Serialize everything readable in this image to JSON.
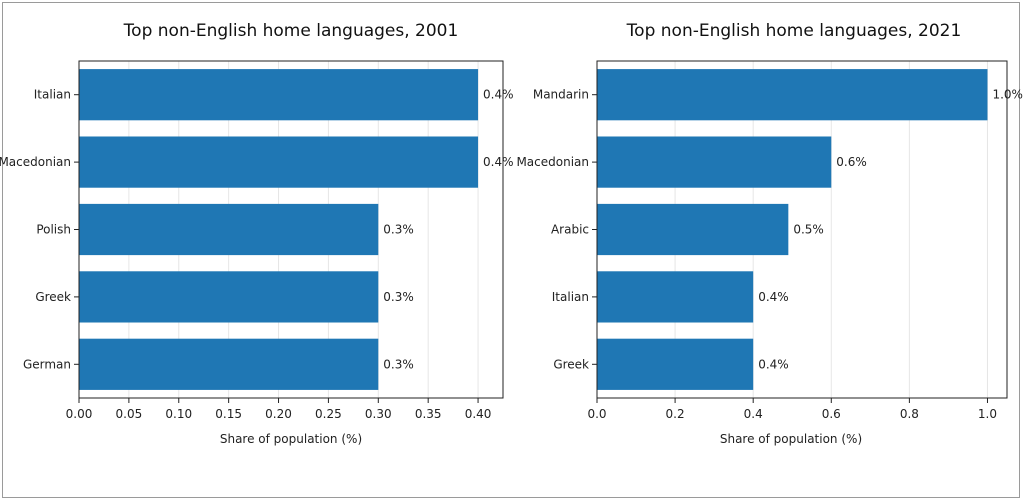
{
  "chart_data": [
    {
      "type": "bar",
      "orientation": "horizontal",
      "title": "Top non-English home languages, 2001",
      "xlabel": "Share of population (%)",
      "ylabel": "",
      "categories": [
        "Italian",
        "Macedonian",
        "Polish",
        "Greek",
        "German"
      ],
      "values": [
        0.4,
        0.4,
        0.3,
        0.3,
        0.3
      ],
      "data_labels": [
        "0.4%",
        "0.4%",
        "0.3%",
        "0.3%",
        "0.3%"
      ],
      "xlim": [
        0,
        0.425
      ],
      "xticks": [
        0.0,
        0.05,
        0.1,
        0.15,
        0.2,
        0.25,
        0.3,
        0.35,
        0.4
      ],
      "xtick_labels": [
        "0.00",
        "0.05",
        "0.10",
        "0.15",
        "0.20",
        "0.25",
        "0.30",
        "0.35",
        "0.40"
      ],
      "grid": "vertical",
      "color": "#1f77b4"
    },
    {
      "type": "bar",
      "orientation": "horizontal",
      "title": "Top non-English home languages, 2021",
      "xlabel": "Share of population (%)",
      "ylabel": "",
      "categories": [
        "Mandarin",
        "Macedonian",
        "Arabic",
        "Italian",
        "Greek"
      ],
      "values": [
        1.0,
        0.6,
        0.49,
        0.4,
        0.4
      ],
      "data_labels": [
        "1.0%",
        "0.6%",
        "0.5%",
        "0.4%",
        "0.4%"
      ],
      "xlim": [
        0,
        1.05
      ],
      "xticks": [
        0.0,
        0.2,
        0.4,
        0.6,
        0.8,
        1.0
      ],
      "xtick_labels": [
        "0.0",
        "0.2",
        "0.4",
        "0.6",
        "0.8",
        "1.0"
      ],
      "grid": "vertical",
      "color": "#1f77b4"
    }
  ]
}
